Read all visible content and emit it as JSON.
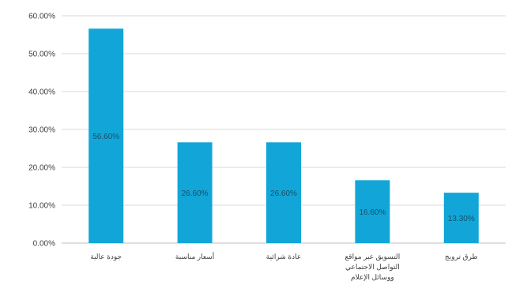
{
  "chart_data": {
    "type": "bar",
    "categories": [
      [
        "جودة عالية"
      ],
      [
        "أسعار مناسبة"
      ],
      [
        "عادة شرائية"
      ],
      [
        "التسويق عبر مواقع",
        "التواصل الاجتماعي",
        "ووسائل الإعلام"
      ],
      [
        "طرق ترويج"
      ]
    ],
    "values": [
      56.6,
      26.6,
      26.6,
      16.6,
      13.3
    ],
    "data_labels": [
      "56.60%",
      "26.60%",
      "26.60%",
      "16.60%",
      "13.30%"
    ],
    "y_ticks": [
      "0.00%",
      "10.00%",
      "20.00%",
      "30.00%",
      "40.00%",
      "50.00%",
      "60.00%"
    ],
    "ylim": [
      0,
      60
    ],
    "grid": true,
    "legend": "none",
    "title": "",
    "xlabel": "",
    "ylabel": "",
    "colors": {
      "bar": "#12a6d8",
      "grid": "#d9d9d9"
    }
  }
}
